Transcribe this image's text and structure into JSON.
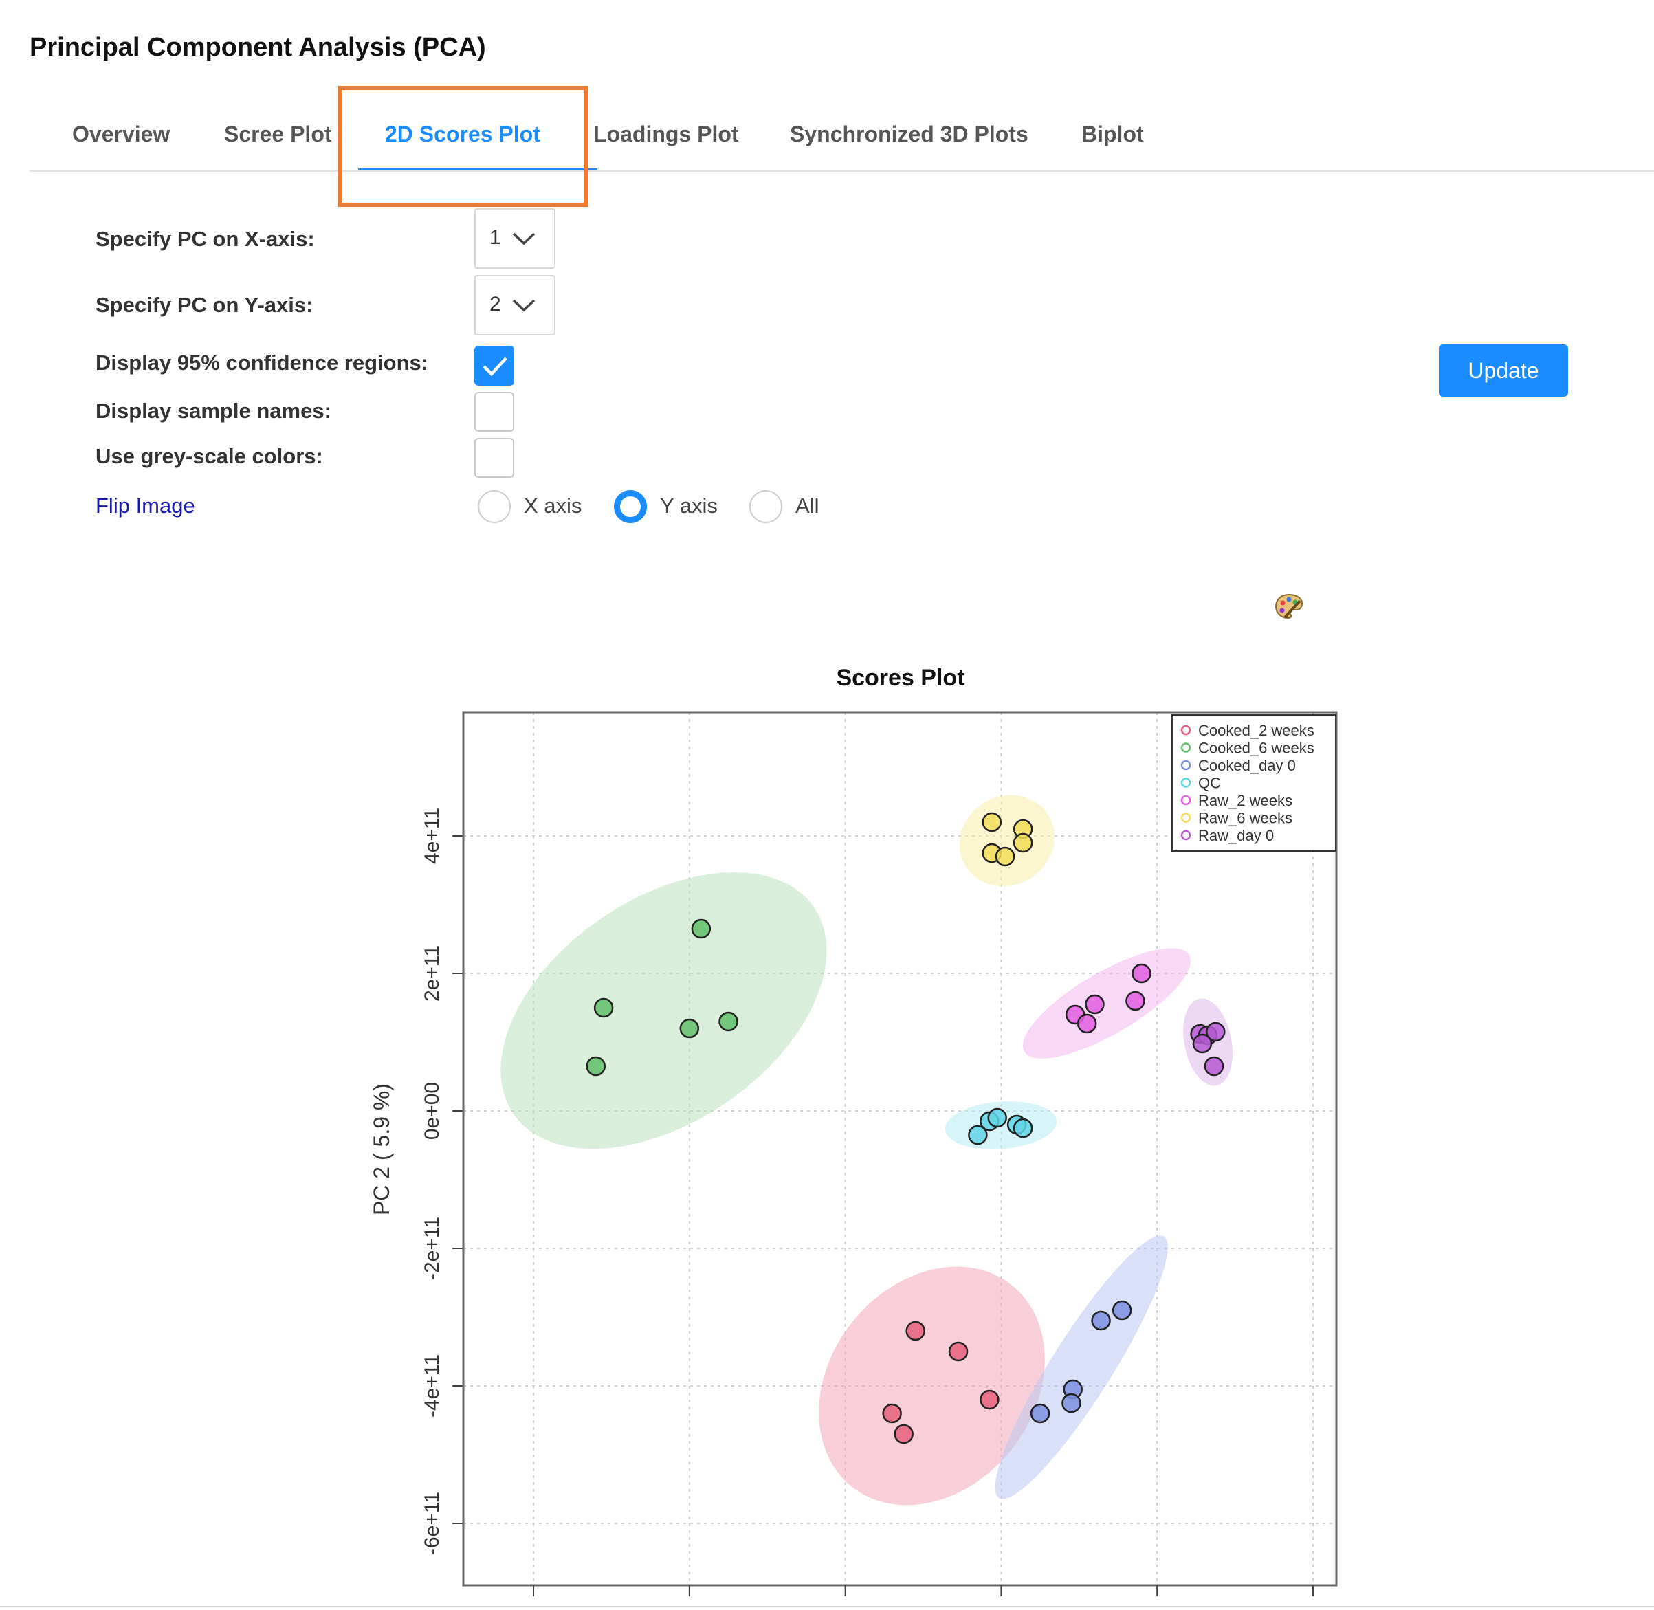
{
  "page": {
    "title": "Principal Component Analysis (PCA)"
  },
  "tabs": [
    {
      "label": "Overview",
      "active": false
    },
    {
      "label": "Scree Plot",
      "active": false
    },
    {
      "label": "2D Scores Plot",
      "active": true
    },
    {
      "label": "Loadings Plot",
      "active": false
    },
    {
      "label": "Synchronized 3D Plots",
      "active": false
    },
    {
      "label": "Biplot",
      "active": false
    }
  ],
  "form": {
    "x_axis": {
      "label": "Specify PC on X-axis:",
      "value": "1"
    },
    "y_axis": {
      "label": "Specify PC on Y-axis:",
      "value": "2"
    },
    "confidence": {
      "label": "Display 95% confidence regions:",
      "checked": true
    },
    "sample_names": {
      "label": "Display sample names:",
      "checked": false
    },
    "grey_scale": {
      "label": "Use grey-scale colors:",
      "checked": false
    },
    "flip": {
      "label": "Flip Image",
      "options": [
        "X axis",
        "Y axis",
        "All"
      ],
      "selected": "Y axis"
    },
    "update_label": "Update"
  },
  "icons": {
    "palette": "palette-icon",
    "dropdown": "chevron-down-icon",
    "check": "check-icon"
  },
  "colors": {
    "accent": "#1a8cff",
    "highlight": "#ee7b30"
  },
  "chart_data": {
    "type": "scatter",
    "title": "Scores Plot",
    "xlabel": "",
    "ylabel": "PC 2 ( 5.9 %)",
    "y_ticks": [
      "-6e+11",
      "-4e+11",
      "-2e+11",
      "0e+00",
      "2e+11",
      "4e+11"
    ],
    "ylim": [
      -690000000000.0,
      580000000000.0
    ],
    "xlim": [
      -690000000000.0,
      430000000000.0
    ],
    "grid": true,
    "legend_position": "top-right",
    "confidence_regions": true,
    "series": [
      {
        "name": "Cooked_2 weeks",
        "color": "#e8607c",
        "fill": "#f2a7b8",
        "points": [
          [
            -110000000000.0,
            -320000000000.0
          ],
          [
            -55000000000.0,
            -350000000000.0
          ],
          [
            -15000000000.0,
            -420000000000.0
          ],
          [
            -140000000000.0,
            -440000000000.0
          ],
          [
            -125000000000.0,
            -470000000000.0
          ]
        ]
      },
      {
        "name": "Cooked_6 weeks",
        "color": "#5fbf6a",
        "fill": "#b9e2bf",
        "points": [
          [
            -385000000000.0,
            265000000000.0
          ],
          [
            -510000000000.0,
            150000000000.0
          ],
          [
            -400000000000.0,
            120000000000.0
          ],
          [
            -350000000000.0,
            130000000000.0
          ],
          [
            -520000000000.0,
            65000000000.0
          ]
        ]
      },
      {
        "name": "Cooked_day 0",
        "color": "#7b8fe0",
        "fill": "#bcc6f0",
        "points": [
          [
            155000000000.0,
            -290000000000.0
          ],
          [
            128000000000.0,
            -305000000000.0
          ],
          [
            92000000000.0,
            -405000000000.0
          ],
          [
            90000000000.0,
            -425000000000.0
          ],
          [
            50000000000.0,
            -440000000000.0
          ]
        ]
      },
      {
        "name": "QC",
        "color": "#5fd3e6",
        "fill": "#b7ebf3",
        "points": [
          [
            -30000000000.0,
            -35000000000.0
          ],
          [
            -15000000000.0,
            -15000000000.0
          ],
          [
            -5000000000.0,
            -10000000000.0
          ],
          [
            20000000000.0,
            -20000000000.0
          ],
          [
            28000000000.0,
            -25000000000.0
          ]
        ]
      },
      {
        "name": "Raw_2 weeks",
        "color": "#e35fe0",
        "fill": "#f3b6f1",
        "points": [
          [
            180000000000.0,
            200000000000.0
          ],
          [
            172000000000.0,
            160000000000.0
          ],
          [
            120000000000.0,
            155000000000.0
          ],
          [
            95000000000.0,
            140000000000.0
          ],
          [
            110000000000.0,
            127000000000.0
          ]
        ]
      },
      {
        "name": "Raw_6 weeks",
        "color": "#f2dd5a",
        "fill": "#f8efaa",
        "points": [
          [
            -12000000000.0,
            420000000000.0
          ],
          [
            28000000000.0,
            410000000000.0
          ],
          [
            28000000000.0,
            390000000000.0
          ],
          [
            -12000000000.0,
            375000000000.0
          ],
          [
            5000000000.0,
            370000000000.0
          ]
        ]
      },
      {
        "name": "Raw_day 0",
        "color": "#b55ad3",
        "fill": "#deb8ea",
        "points": [
          [
            255000000000.0,
            112000000000.0
          ],
          [
            265000000000.0,
            110000000000.0
          ],
          [
            275000000000.0,
            115000000000.0
          ],
          [
            258000000000.0,
            98000000000.0
          ],
          [
            273000000000.0,
            65000000000.0
          ]
        ]
      }
    ]
  }
}
